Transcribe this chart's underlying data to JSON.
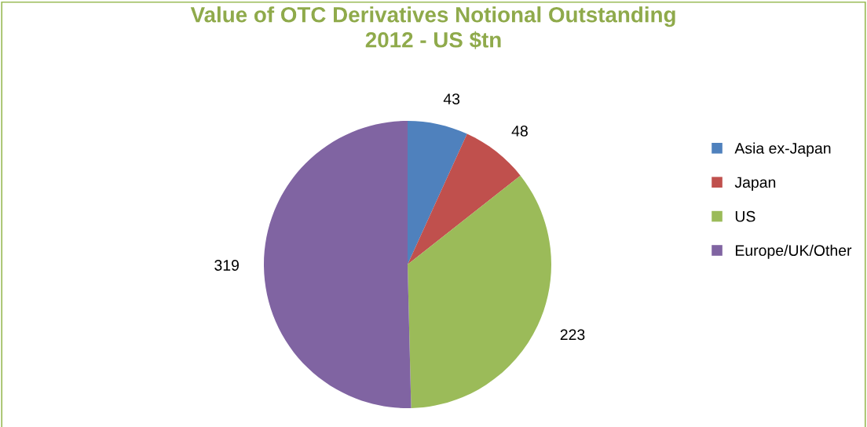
{
  "chart_data": {
    "type": "pie",
    "title": "Value of OTC Derivatives Notional Outstanding\n2012 - US $tn",
    "categories": [
      "Asia ex-Japan",
      "Japan",
      "US",
      "Europe/UK/Other"
    ],
    "values": [
      43,
      48,
      223,
      319
    ],
    "colors": [
      "#4f81bd",
      "#c0504d",
      "#9bbb59",
      "#8064a2"
    ],
    "data_labels": true,
    "legend": "right"
  }
}
